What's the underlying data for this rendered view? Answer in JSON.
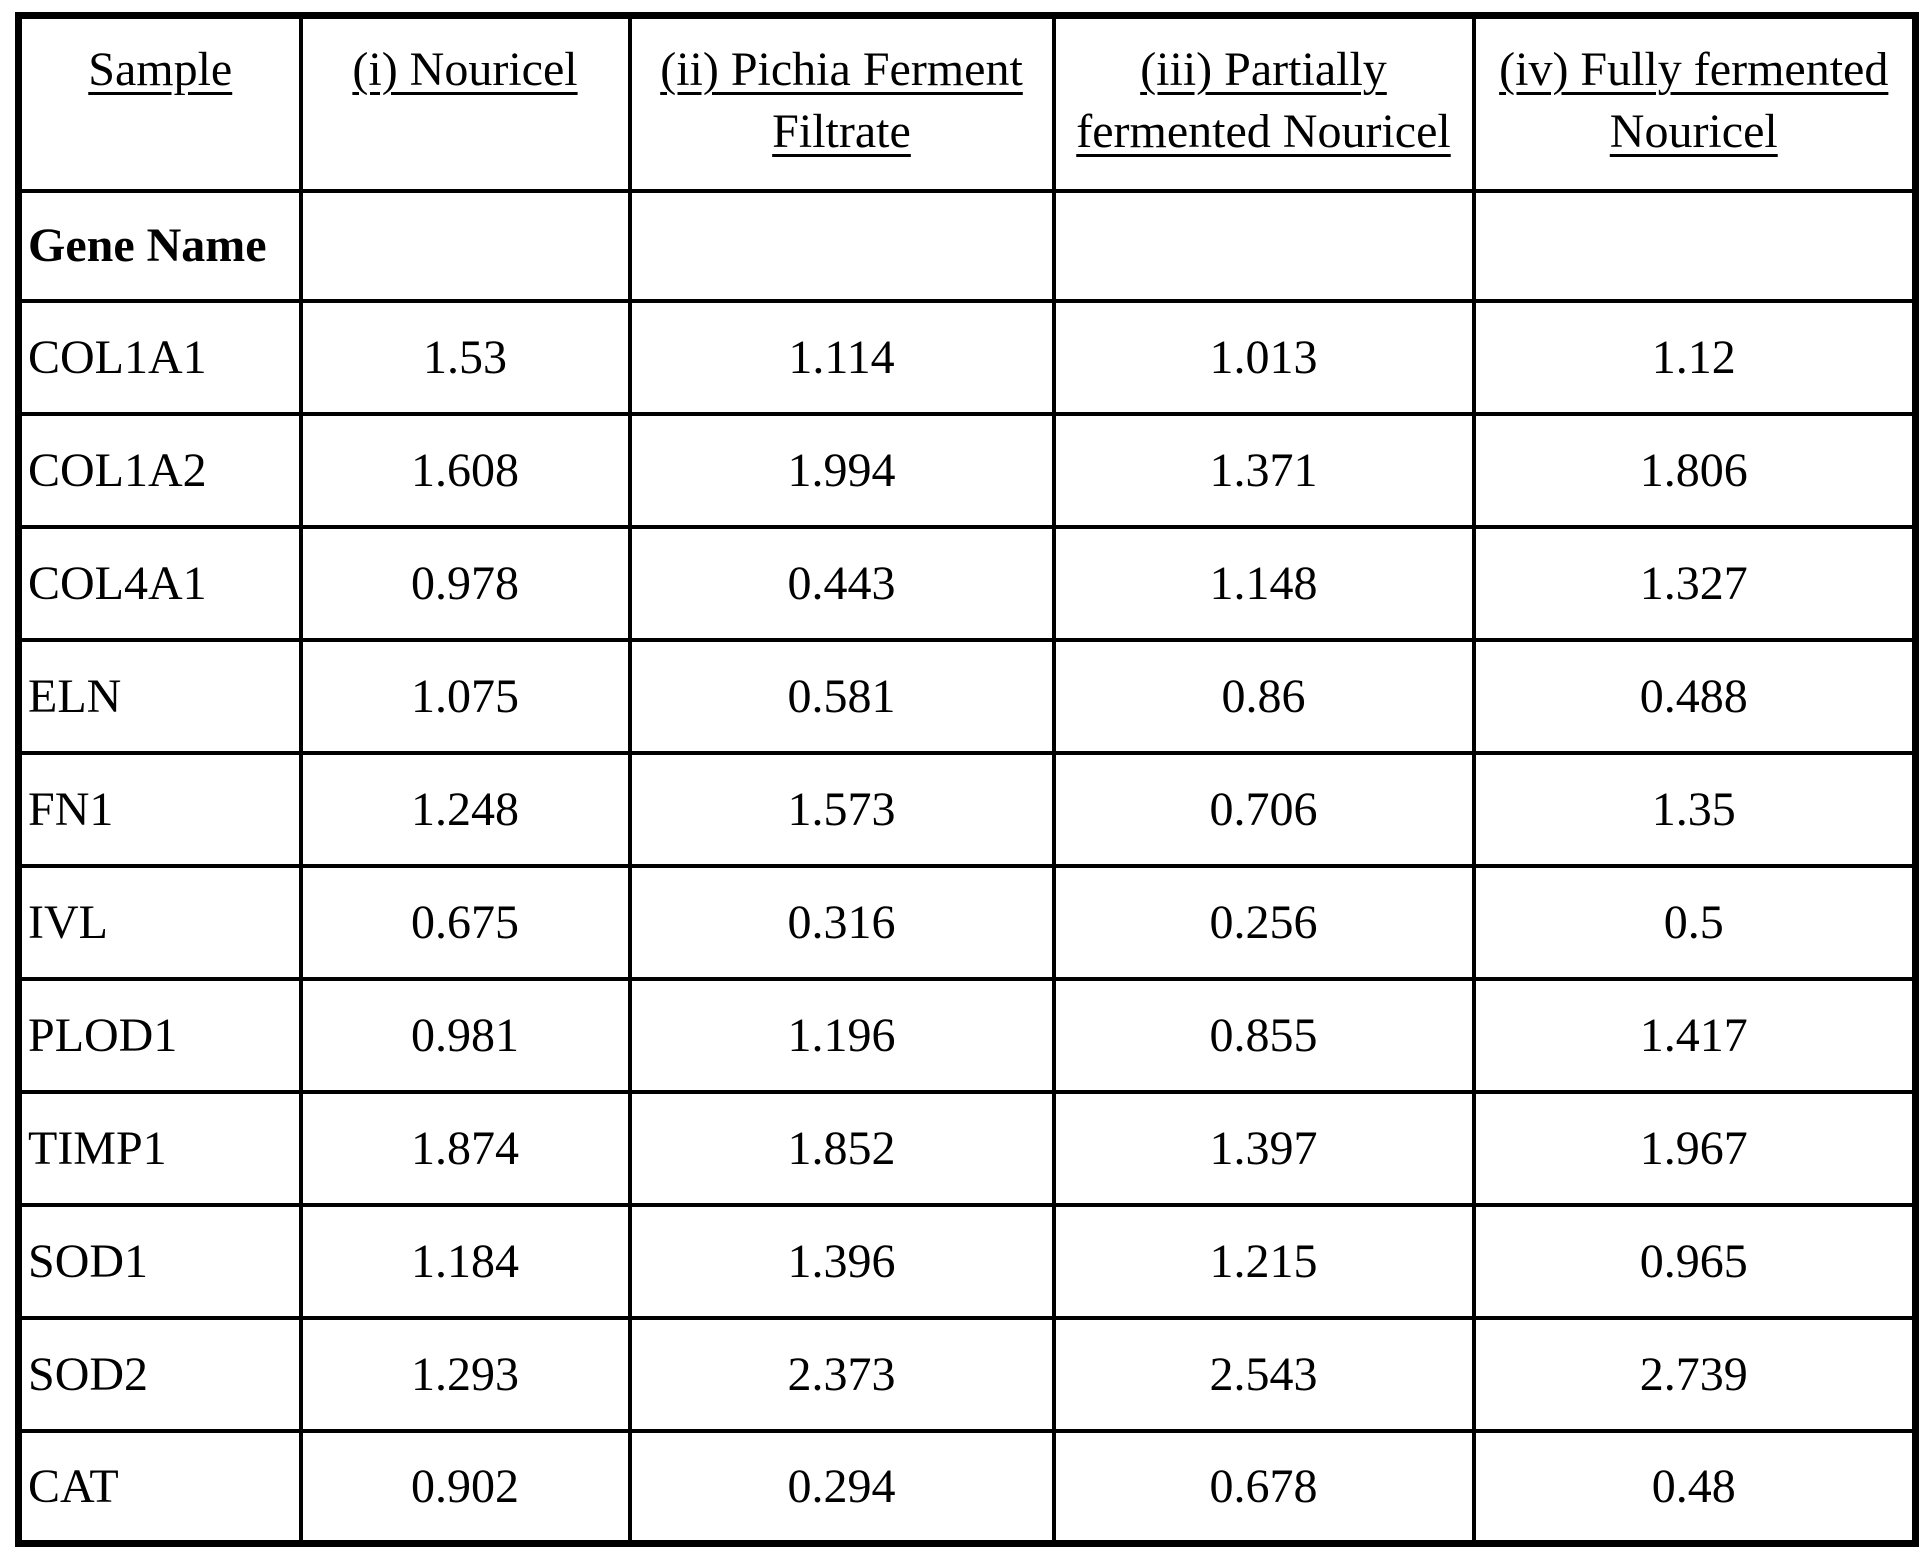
{
  "table": {
    "columns": [
      "Sample",
      "(i) Nouricel",
      "(ii) Pichia Ferment\nFiltrate",
      "(iii) Partially\nfermented Nouricel",
      "(iv) Fully fermented\nNouricel"
    ],
    "gene_name_label": "Gene Name",
    "rows": [
      {
        "gene": "COL1A1",
        "values": [
          "1.53",
          "1.114",
          "1.013",
          "1.12"
        ]
      },
      {
        "gene": "COL1A2",
        "values": [
          "1.608",
          "1.994",
          "1.371",
          "1.806"
        ]
      },
      {
        "gene": "COL4A1",
        "values": [
          "0.978",
          "0.443",
          "1.148",
          "1.327"
        ]
      },
      {
        "gene": "ELN",
        "values": [
          "1.075",
          "0.581",
          "0.86",
          "0.488"
        ]
      },
      {
        "gene": "FN1",
        "values": [
          "1.248",
          "1.573",
          "0.706",
          "1.35"
        ]
      },
      {
        "gene": "IVL",
        "values": [
          "0.675",
          "0.316",
          "0.256",
          "0.5"
        ]
      },
      {
        "gene": "PLOD1",
        "values": [
          "0.981",
          "1.196",
          "0.855",
          "1.417"
        ]
      },
      {
        "gene": "TIMP1",
        "values": [
          "1.874",
          "1.852",
          "1.397",
          "1.967"
        ]
      },
      {
        "gene": "SOD1",
        "values": [
          "1.184",
          "1.396",
          "1.215",
          "0.965"
        ]
      },
      {
        "gene": "SOD2",
        "values": [
          "1.293",
          "2.373",
          "2.543",
          "2.739"
        ]
      },
      {
        "gene": "CAT",
        "values": [
          "0.902",
          "0.294",
          "0.678",
          "0.48"
        ]
      }
    ]
  },
  "colors": {
    "border": "#000000",
    "text": "#000000",
    "background": "#ffffff"
  }
}
